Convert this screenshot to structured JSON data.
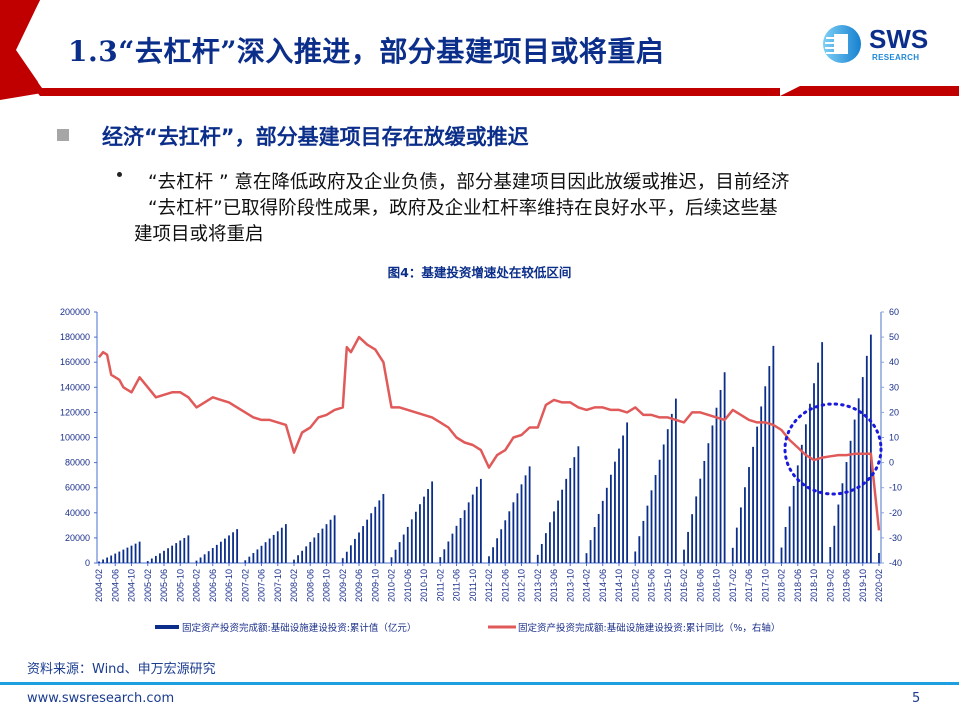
{
  "header": {
    "title": "1.3“去杠杆”深入推进，部分基建项目或将重启",
    "logo": {
      "name": "SWS",
      "subtitle": "RESEARCH"
    },
    "colors": {
      "banner_red": "#c00000",
      "title_blue": "#0b2e8a"
    }
  },
  "section": {
    "heading": "经济“去扛杆”，部分基建项目存在放缓或推迟",
    "bullet_lines": [
      "“去杠杆 ” 意在降低政府及企业负债，部分基建项目因此放缓或推迟，目前经济",
      "“去杠杆”已取得阶段性成果，政府及企业杠杆率维持在良好水平，后续这些基",
      "建项目或将重启"
    ]
  },
  "figure": {
    "title": "图4：基建投资增速处在较低区间"
  },
  "chart_data": {
    "type": "bar+line",
    "title": "图4：基建投资增速处在较低区间",
    "xlabel": "",
    "ylabel": "",
    "left_axis": {
      "ticks": [
        0,
        20000,
        40000,
        60000,
        80000,
        100000,
        120000,
        140000,
        160000,
        180000,
        200000
      ],
      "range": [
        0,
        200000
      ]
    },
    "right_axis": {
      "ticks": [
        -40,
        -30,
        -20,
        -10,
        0,
        10,
        20,
        30,
        40,
        50,
        60
      ],
      "range": [
        -40,
        60
      ]
    },
    "x_tick_labels": [
      "2004-02",
      "2004-06",
      "2004-10",
      "2005-02",
      "2005-06",
      "2005-10",
      "2006-02",
      "2006-06",
      "2006-10",
      "2007-02",
      "2007-06",
      "2007-10",
      "2008-02",
      "2008-06",
      "2008-10",
      "2009-02",
      "2009-06",
      "2009-10",
      "2010-02",
      "2010-06",
      "2010-10",
      "2011-02",
      "2011-06",
      "2011-10",
      "2012-02",
      "2012-06",
      "2012-10",
      "2013-02",
      "2013-06",
      "2013-10",
      "2014-02",
      "2014-06",
      "2014-10",
      "2015-02",
      "2015-06",
      "2015-10",
      "2016-02",
      "2016-06",
      "2016-10",
      "2017-02",
      "2017-06",
      "2017-10",
      "2018-02",
      "2018-06",
      "2018-10",
      "2019-02",
      "2019-06",
      "2019-10",
      "2020-02"
    ],
    "series": [
      {
        "name": "固定资产投资完成额:基础设施建设投资:累计值（亿元）",
        "type": "bar",
        "axis": "left",
        "color": "#0b2e8a",
        "year_end_values": {
          "2004": 17000,
          "2005": 22000,
          "2006": 27000,
          "2007": 31000,
          "2008": 38000,
          "2009": 55000,
          "2010": 65000,
          "2011": 67000,
          "2012": 77000,
          "2013": 93000,
          "2014": 112000,
          "2015": 131000,
          "2016": 152000,
          "2017": 173000,
          "2018": 176000,
          "2019": 182000
        },
        "last_value": {
          "2020-02": 8000
        }
      },
      {
        "name": "固定资产投资完成额:基础设施建设投资:累计同比（%，右轴）",
        "type": "line",
        "axis": "right",
        "color": "#e05a5a",
        "points": [
          [
            "2004-02",
            42
          ],
          [
            "2004-03",
            44
          ],
          [
            "2004-04",
            43
          ],
          [
            "2004-05",
            35
          ],
          [
            "2004-06",
            34
          ],
          [
            "2004-07",
            33
          ],
          [
            "2004-08",
            30
          ],
          [
            "2004-09",
            29
          ],
          [
            "2004-10",
            28
          ],
          [
            "2004-12",
            34
          ],
          [
            "2005-02",
            30
          ],
          [
            "2005-04",
            26
          ],
          [
            "2005-06",
            27
          ],
          [
            "2005-08",
            28
          ],
          [
            "2005-10",
            28
          ],
          [
            "2005-12",
            26
          ],
          [
            "2006-02",
            22
          ],
          [
            "2006-04",
            24
          ],
          [
            "2006-06",
            26
          ],
          [
            "2006-08",
            25
          ],
          [
            "2006-10",
            24
          ],
          [
            "2006-12",
            22
          ],
          [
            "2007-02",
            20
          ],
          [
            "2007-04",
            18
          ],
          [
            "2007-06",
            17
          ],
          [
            "2007-08",
            17
          ],
          [
            "2007-10",
            16
          ],
          [
            "2007-12",
            15
          ],
          [
            "2008-02",
            4
          ],
          [
            "2008-04",
            12
          ],
          [
            "2008-06",
            14
          ],
          [
            "2008-08",
            18
          ],
          [
            "2008-10",
            19
          ],
          [
            "2008-12",
            21
          ],
          [
            "2009-02",
            22
          ],
          [
            "2009-03",
            46
          ],
          [
            "2009-04",
            44
          ],
          [
            "2009-06",
            50
          ],
          [
            "2009-08",
            47
          ],
          [
            "2009-10",
            45
          ],
          [
            "2009-12",
            40
          ],
          [
            "2010-02",
            22
          ],
          [
            "2010-04",
            22
          ],
          [
            "2010-06",
            21
          ],
          [
            "2010-08",
            20
          ],
          [
            "2010-10",
            19
          ],
          [
            "2010-12",
            18
          ],
          [
            "2011-02",
            16
          ],
          [
            "2011-04",
            14
          ],
          [
            "2011-06",
            10
          ],
          [
            "2011-08",
            8
          ],
          [
            "2011-10",
            7
          ],
          [
            "2011-12",
            5
          ],
          [
            "2012-02",
            -2
          ],
          [
            "2012-04",
            3
          ],
          [
            "2012-06",
            5
          ],
          [
            "2012-08",
            10
          ],
          [
            "2012-10",
            11
          ],
          [
            "2012-12",
            14
          ],
          [
            "2013-02",
            14
          ],
          [
            "2013-04",
            23
          ],
          [
            "2013-06",
            25
          ],
          [
            "2013-08",
            24
          ],
          [
            "2013-10",
            24
          ],
          [
            "2013-12",
            22
          ],
          [
            "2014-02",
            21
          ],
          [
            "2014-04",
            22
          ],
          [
            "2014-06",
            22
          ],
          [
            "2014-08",
            21
          ],
          [
            "2014-10",
            21
          ],
          [
            "2014-12",
            20
          ],
          [
            "2015-02",
            22
          ],
          [
            "2015-04",
            19
          ],
          [
            "2015-06",
            19
          ],
          [
            "2015-08",
            18
          ],
          [
            "2015-10",
            18
          ],
          [
            "2015-12",
            17
          ],
          [
            "2016-02",
            16
          ],
          [
            "2016-04",
            20
          ],
          [
            "2016-06",
            20
          ],
          [
            "2016-08",
            19
          ],
          [
            "2016-10",
            18
          ],
          [
            "2016-12",
            17
          ],
          [
            "2017-02",
            21
          ],
          [
            "2017-04",
            19
          ],
          [
            "2017-06",
            17
          ],
          [
            "2017-08",
            16
          ],
          [
            "2017-10",
            16
          ],
          [
            "2017-12",
            15
          ],
          [
            "2018-02",
            13
          ],
          [
            "2018-04",
            9
          ],
          [
            "2018-06",
            6
          ],
          [
            "2018-08",
            3
          ],
          [
            "2018-10",
            1
          ],
          [
            "2018-12",
            2
          ],
          [
            "2019-02",
            2.5
          ],
          [
            "2019-04",
            3
          ],
          [
            "2019-06",
            3
          ],
          [
            "2019-08",
            3.5
          ],
          [
            "2019-10",
            3.5
          ],
          [
            "2019-12",
            3.5
          ],
          [
            "2020-02",
            -27
          ]
        ]
      }
    ],
    "annotations": [
      {
        "type": "dotted-circle",
        "color": "#1a1adc",
        "around": "2018-06 to 2019-12"
      }
    ],
    "legend_position": "bottom",
    "grid": false
  },
  "source": "资料来源：Wind、申万宏源研究",
  "footer": {
    "url": "www.swsresearch.com",
    "page": "5"
  }
}
